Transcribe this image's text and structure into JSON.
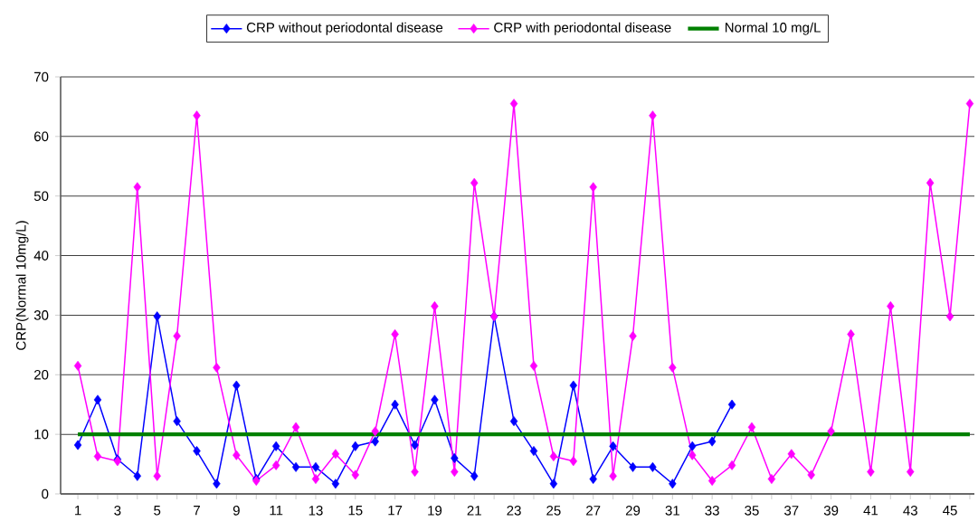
{
  "chart_data": {
    "type": "line",
    "ylabel": "CRP(Normal 10mg/L)",
    "categories": [
      "1",
      null,
      "3",
      null,
      "5",
      null,
      "7",
      null,
      "9",
      null,
      "11",
      null,
      "13",
      null,
      "15",
      null,
      "17",
      null,
      "19",
      null,
      "21",
      null,
      "23",
      null,
      "25",
      null,
      "27",
      null,
      "29",
      null,
      "31",
      null,
      "33",
      null,
      "35",
      null,
      "37",
      null,
      "39",
      null,
      "41",
      null,
      "43",
      null,
      "45",
      null
    ],
    "ylim": [
      0,
      70
    ],
    "yticks": [
      0,
      10,
      20,
      30,
      40,
      50,
      60,
      70
    ],
    "grid": "y",
    "legend": "top",
    "marker": "diamond",
    "line_style": "solid",
    "series": [
      {
        "name": "CRP without periodontal disease",
        "color": "#0000ff",
        "values": [
          8.2,
          15.8,
          5.8,
          3.0,
          29.8,
          12.2,
          7.2,
          1.7,
          18.2,
          2.5,
          8.0,
          4.5,
          4.5,
          1.7,
          8.0,
          8.8,
          15.0,
          8.2,
          15.8,
          6.0,
          3.0,
          29.8,
          12.2,
          7.2,
          1.7,
          18.2,
          2.5,
          8.0,
          4.5,
          4.5,
          1.7,
          8.0,
          8.8,
          15.0,
          null,
          null,
          null,
          null,
          null,
          null,
          null,
          null,
          null,
          null,
          null,
          null
        ]
      },
      {
        "name": "CRP with periodontal disease",
        "color": "#ff00ff",
        "values": [
          21.5,
          6.3,
          5.5,
          51.5,
          3.0,
          26.5,
          63.5,
          21.2,
          6.5,
          2.2,
          4.8,
          11.2,
          2.5,
          6.7,
          3.2,
          10.5,
          26.8,
          3.7,
          31.5,
          3.7,
          52.2,
          29.8,
          65.5,
          21.5,
          6.3,
          5.5,
          51.5,
          3.0,
          26.5,
          63.5,
          21.2,
          6.5,
          2.2,
          4.8,
          11.2,
          2.5,
          6.7,
          3.2,
          10.5,
          26.8,
          3.7,
          31.5,
          3.7,
          52.2,
          29.8,
          65.5
        ]
      },
      {
        "name": "Normal 10 mg/L",
        "color": "#008000",
        "marker": "none",
        "values": [
          10,
          10,
          10,
          10,
          10,
          10,
          10,
          10,
          10,
          10,
          10,
          10,
          10,
          10,
          10,
          10,
          10,
          10,
          10,
          10,
          10,
          10,
          10,
          10,
          10,
          10,
          10,
          10,
          10,
          10,
          10,
          10,
          10,
          10,
          10,
          10,
          10,
          10,
          10,
          10,
          10,
          10,
          10,
          10,
          10,
          10
        ]
      }
    ]
  }
}
